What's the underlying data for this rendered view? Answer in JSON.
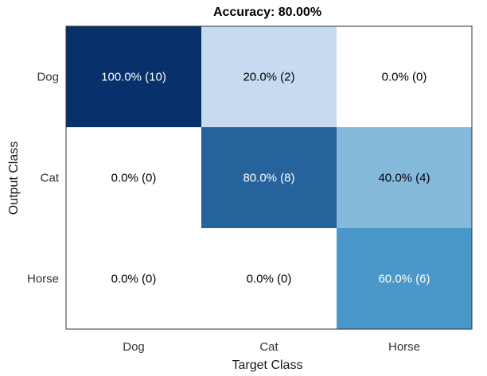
{
  "chart_data": {
    "type": "heatmap",
    "title": "Accuracy: 80.00%",
    "xlabel": "Target Class",
    "ylabel": "Output Class",
    "x_categories": [
      "Dog",
      "Cat",
      "Horse"
    ],
    "y_categories": [
      "Dog",
      "Cat",
      "Horse"
    ],
    "cells": [
      [
        {
          "label": "100.0% (10)",
          "percent": 100.0,
          "count": 10,
          "fill": "#08306b",
          "text_color": "#ffffff"
        },
        {
          "label": "20.0% (2)",
          "percent": 20.0,
          "count": 2,
          "fill": "#c6dbef",
          "text_color": "#000000"
        },
        {
          "label": "0.0% (0)",
          "percent": 0.0,
          "count": 0,
          "fill": "#ffffff",
          "text_color": "#000000"
        }
      ],
      [
        {
          "label": "0.0% (0)",
          "percent": 0.0,
          "count": 0,
          "fill": "#ffffff",
          "text_color": "#000000"
        },
        {
          "label": "80.0% (8)",
          "percent": 80.0,
          "count": 8,
          "fill": "#26629b",
          "text_color": "#ffffff"
        },
        {
          "label": "40.0% (4)",
          "percent": 40.0,
          "count": 4,
          "fill": "#85b9da",
          "text_color": "#000000"
        }
      ],
      [
        {
          "label": "0.0% (0)",
          "percent": 0.0,
          "count": 0,
          "fill": "#ffffff",
          "text_color": "#000000"
        },
        {
          "label": "0.0% (0)",
          "percent": 0.0,
          "count": 0,
          "fill": "#ffffff",
          "text_color": "#000000"
        },
        {
          "label": "60.0% (6)",
          "percent": 60.0,
          "count": 6,
          "fill": "#4a98c9",
          "text_color": "#ffffff"
        }
      ]
    ],
    "grid": false
  }
}
